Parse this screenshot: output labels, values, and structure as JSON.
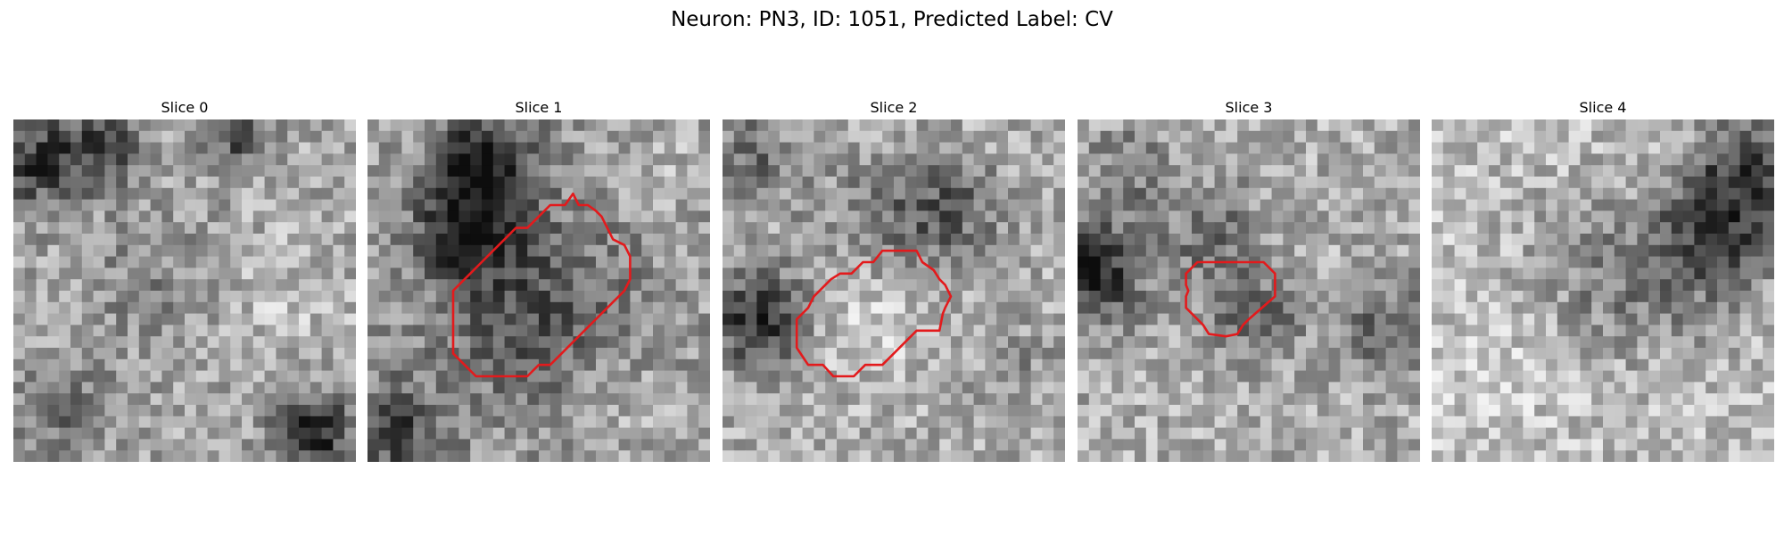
{
  "figure": {
    "title": "Neuron: PN3, ID: 1051, Predicted Label: CV"
  },
  "colors": {
    "roi": "#e31a1c",
    "background": "#ffffff"
  },
  "image_grid": {
    "rows": 30,
    "cols": 30,
    "colormap": "gray"
  },
  "panels": [
    {
      "title": "Slice 0",
      "has_roi": false,
      "roi": []
    },
    {
      "title": "Slice 1",
      "has_roi": true,
      "roi": [
        [
          18,
          6.5
        ],
        [
          17.3,
          7.5
        ],
        [
          16,
          7.5
        ],
        [
          15,
          8.5
        ],
        [
          14,
          9.5
        ],
        [
          13,
          9.5
        ],
        [
          12,
          10.5
        ],
        [
          11,
          11.5
        ],
        [
          10,
          12.5
        ],
        [
          9,
          13.5
        ],
        [
          8.5,
          14
        ],
        [
          7.5,
          15
        ],
        [
          7.5,
          18
        ],
        [
          7.5,
          20.5
        ],
        [
          8.5,
          21.5
        ],
        [
          9.5,
          22.5
        ],
        [
          12,
          22.5
        ],
        [
          14,
          22.5
        ],
        [
          15,
          21.5
        ],
        [
          16,
          21.5
        ],
        [
          17,
          20.5
        ],
        [
          18,
          19.5
        ],
        [
          19,
          18.5
        ],
        [
          20,
          17.5
        ],
        [
          21,
          16.5
        ],
        [
          22,
          15.5
        ],
        [
          22.5,
          15
        ],
        [
          23,
          14
        ],
        [
          23,
          13.5
        ],
        [
          23,
          12
        ],
        [
          22.5,
          11
        ],
        [
          21.5,
          10.5
        ],
        [
          21,
          9.5
        ],
        [
          20.5,
          8.5
        ],
        [
          20,
          8
        ],
        [
          19.3,
          7.5
        ],
        [
          18.5,
          7.5
        ]
      ]
    },
    {
      "title": "Slice 2",
      "has_roi": true,
      "roi": [
        [
          14,
          11.5
        ],
        [
          13.2,
          12.5
        ],
        [
          12.3,
          12.5
        ],
        [
          11.3,
          13.5
        ],
        [
          10.3,
          13.5
        ],
        [
          9.5,
          14
        ],
        [
          8,
          15.5
        ],
        [
          7.5,
          16.5
        ],
        [
          6.5,
          17.5
        ],
        [
          6.5,
          20
        ],
        [
          7.5,
          21.5
        ],
        [
          8.8,
          21.5
        ],
        [
          9.7,
          22.5
        ],
        [
          11.5,
          22.5
        ],
        [
          12.5,
          21.5
        ],
        [
          14,
          21.5
        ],
        [
          15,
          20.5
        ],
        [
          16,
          19.5
        ],
        [
          17,
          18.5
        ],
        [
          18,
          18.5
        ],
        [
          19,
          18.5
        ],
        [
          19.3,
          17
        ],
        [
          19.5,
          16.5
        ],
        [
          20,
          15.5
        ],
        [
          19.5,
          14.5
        ],
        [
          19,
          14
        ],
        [
          18.5,
          13.2
        ],
        [
          17.5,
          12.5
        ],
        [
          17,
          11.5
        ],
        [
          16,
          11.5
        ],
        [
          15,
          11.5
        ]
      ]
    },
    {
      "title": "Slice 3",
      "has_roi": true,
      "roi": [
        [
          10.5,
          12.5
        ],
        [
          9.5,
          13.5
        ],
        [
          9.5,
          14.5
        ],
        [
          9.7,
          15
        ],
        [
          9.5,
          15.5
        ],
        [
          9.5,
          16.5
        ],
        [
          10.5,
          17.5
        ],
        [
          11,
          18
        ],
        [
          11.5,
          18.8
        ],
        [
          13,
          19
        ],
        [
          14,
          18.8
        ],
        [
          14.5,
          18
        ],
        [
          15,
          17.5
        ],
        [
          17.3,
          15.5
        ],
        [
          17.3,
          14
        ],
        [
          17.3,
          13.5
        ],
        [
          16.3,
          12.5
        ],
        [
          15.5,
          12.5
        ],
        [
          14,
          12.5
        ],
        [
          13,
          12.5
        ],
        [
          11.5,
          12.5
        ]
      ]
    },
    {
      "title": "Slice 4",
      "has_roi": false,
      "roi": []
    }
  ]
}
